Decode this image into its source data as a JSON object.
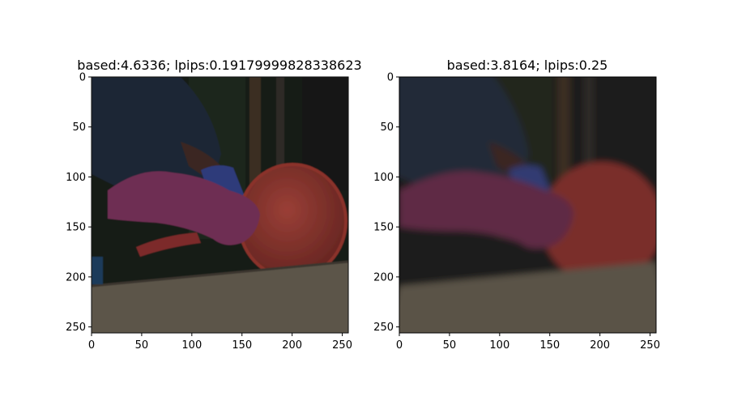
{
  "chart_data": [
    {
      "type": "image",
      "title": "based:4.6336; lpips:0.19179999828338623",
      "xlabel": "",
      "ylabel": "",
      "xlim": [
        0,
        256
      ],
      "ylim": [
        256,
        0
      ],
      "x_ticks": [
        0,
        50,
        100,
        150,
        200,
        250
      ],
      "y_ticks": [
        0,
        50,
        100,
        150,
        200,
        250
      ],
      "grid": false,
      "image_content": "sharp"
    },
    {
      "type": "image",
      "title": "based:3.8164; lpips:0.25",
      "xlabel": "",
      "ylabel": "",
      "xlim": [
        0,
        256
      ],
      "ylim": [
        256,
        0
      ],
      "x_ticks": [
        0,
        50,
        100,
        150,
        200,
        250
      ],
      "y_ticks": [
        0,
        50,
        100,
        150,
        200,
        250
      ],
      "grid": false,
      "image_content": "blurred"
    }
  ],
  "colors": {
    "background": "#ffffff",
    "axis": "#000000",
    "scene_dark": "#1a1c1a",
    "glove": "#6e2f52",
    "bowl": "#7a2e2a",
    "counter": "#5c5548",
    "sleeve": "#1f2a3a"
  }
}
